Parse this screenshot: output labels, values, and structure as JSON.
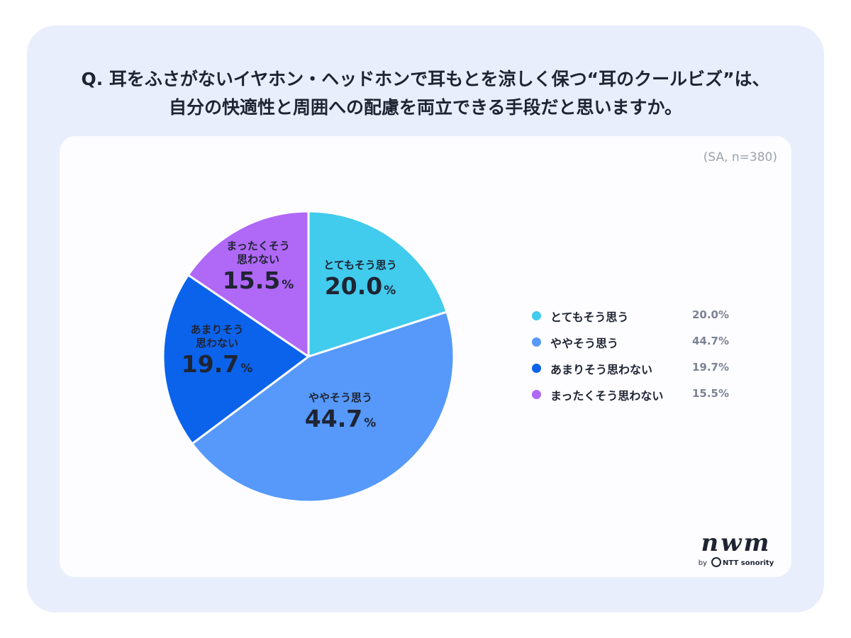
{
  "header": {
    "title_line1": "Q. 耳をふさがないイヤホン・ヘッドホンで耳もとを涼しく保つ“耳のクールビズ”は、",
    "title_line2": "自分の快適性と周囲への配慮を両立できる手段だと思いますか。"
  },
  "sample_note": "(SA, n=380)",
  "colors": {
    "page_bg": "#e8eefc",
    "card_bg": "#fdfdff",
    "text": "#1f2433",
    "muted": "#7c8393"
  },
  "chart_data": {
    "type": "pie",
    "slices": [
      {
        "label": "とてもそう思う",
        "pie_label_lines": [
          "とてもそう思う"
        ],
        "value": 20.0,
        "value_text": "20.0",
        "legend_value": "20.0%",
        "color": "#41cbec"
      },
      {
        "label": "ややそう思う",
        "pie_label_lines": [
          "ややそう思う"
        ],
        "value": 44.7,
        "value_text": "44.7",
        "legend_value": "44.7%",
        "color": "#5699fb"
      },
      {
        "label": "あまりそう思わない",
        "pie_label_lines": [
          "あまりそう",
          "思わない"
        ],
        "value": 19.7,
        "value_text": "19.7",
        "legend_value": "19.7%",
        "color": "#0b63ec"
      },
      {
        "label": "まったくそう思わない",
        "pie_label_lines": [
          "まったくそう",
          "思わない"
        ],
        "value": 15.5,
        "value_text": "15.5",
        "legend_value": "15.5%",
        "color": "#b068f6"
      }
    ],
    "percent_sign": "%",
    "start": "12 o'clock",
    "direction": "clockwise",
    "legend_position": "right"
  },
  "logo": {
    "wordmark": "nwm",
    "by": "by",
    "brand": "NTT sonority"
  }
}
